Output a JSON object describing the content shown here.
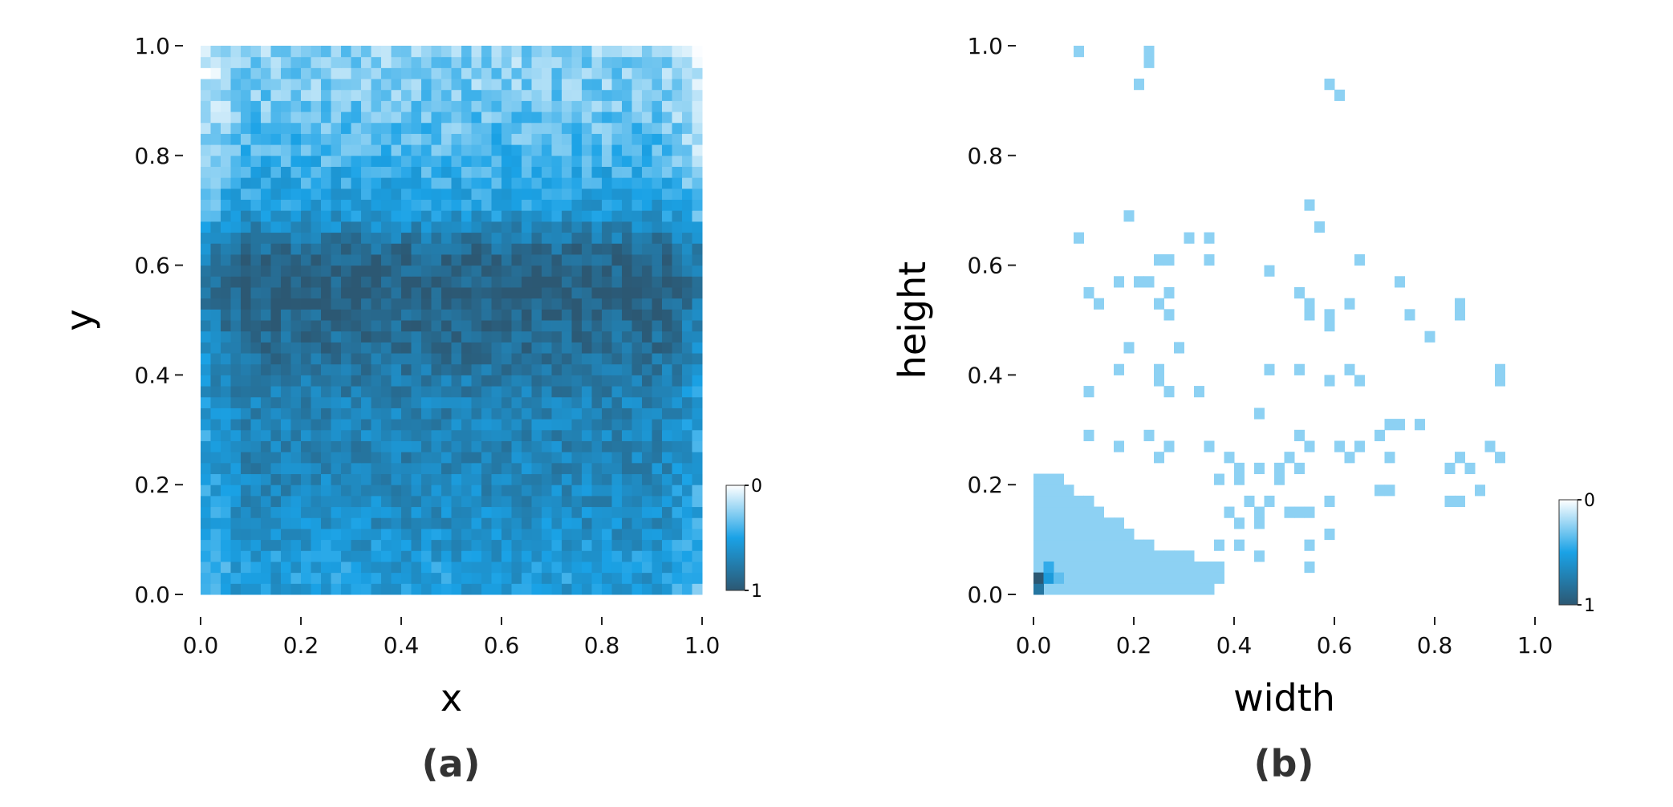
{
  "chart_data": [
    {
      "type": "heatmap",
      "panel": "(a)",
      "xlabel": "x",
      "ylabel": "y",
      "xlim": [
        0.0,
        1.0
      ],
      "ylim": [
        0.0,
        1.0
      ],
      "x_ticks": [
        "0.0",
        "0.2",
        "0.4",
        "0.6",
        "0.8",
        "1.0"
      ],
      "y_ticks": [
        "0.0",
        "0.2",
        "0.4",
        "0.6",
        "0.8",
        "1.0"
      ],
      "bins": [
        50,
        50
      ],
      "colorbar": {
        "min_label": "0",
        "max_label": "1",
        "low_color": "#ffffff",
        "mid_color": "#1aa2e6",
        "high_color": "#2c5873"
      },
      "grid": false,
      "description_of_density": "normalized density of object centers; highest near y 0.45-0.65 across all x, lower toward top (y>0.8) and left/right edges",
      "density_profile_y": [
        {
          "y": 0.05,
          "value": 0.55
        },
        {
          "y": 0.15,
          "value": 0.65
        },
        {
          "y": 0.25,
          "value": 0.7
        },
        {
          "y": 0.35,
          "value": 0.72
        },
        {
          "y": 0.45,
          "value": 0.85
        },
        {
          "y": 0.55,
          "value": 0.95
        },
        {
          "y": 0.62,
          "value": 0.9
        },
        {
          "y": 0.7,
          "value": 0.55
        },
        {
          "y": 0.8,
          "value": 0.4
        },
        {
          "y": 0.9,
          "value": 0.3
        },
        {
          "y": 0.98,
          "value": 0.25
        }
      ]
    },
    {
      "type": "heatmap",
      "panel": "(b)",
      "xlabel": "width",
      "ylabel": "height",
      "xlim": [
        0.0,
        1.0
      ],
      "ylim": [
        0.0,
        1.0
      ],
      "x_ticks": [
        "0.0",
        "0.2",
        "0.4",
        "0.6",
        "0.8",
        "1.0"
      ],
      "y_ticks": [
        "0.0",
        "0.2",
        "0.4",
        "0.6",
        "0.8",
        "1.0"
      ],
      "bins": [
        50,
        50
      ],
      "colorbar": {
        "min_label": "0",
        "max_label": "1",
        "low_color": "#ffffff",
        "mid_color": "#1aa2e6",
        "high_color": "#2c5873"
      },
      "grid": false,
      "peak": {
        "width": 0.01,
        "height": 0.03,
        "value": 1.0
      },
      "sparse_cells": [
        [
          0.09,
          0.99
        ],
        [
          0.23,
          0.98
        ],
        [
          0.23,
          0.96
        ],
        [
          0.21,
          0.93
        ],
        [
          0.59,
          0.93
        ],
        [
          0.61,
          0.91
        ],
        [
          0.55,
          0.71
        ],
        [
          0.19,
          0.69
        ],
        [
          0.57,
          0.67
        ],
        [
          0.09,
          0.65
        ],
        [
          0.31,
          0.65
        ],
        [
          0.35,
          0.65
        ],
        [
          0.25,
          0.61
        ],
        [
          0.27,
          0.61
        ],
        [
          0.35,
          0.61
        ],
        [
          0.65,
          0.61
        ],
        [
          0.47,
          0.59
        ],
        [
          0.17,
          0.57
        ],
        [
          0.21,
          0.57
        ],
        [
          0.23,
          0.57
        ],
        [
          0.73,
          0.57
        ],
        [
          0.11,
          0.55
        ],
        [
          0.27,
          0.55
        ],
        [
          0.53,
          0.55
        ],
        [
          0.13,
          0.53
        ],
        [
          0.25,
          0.53
        ],
        [
          0.55,
          0.53
        ],
        [
          0.63,
          0.53
        ],
        [
          0.85,
          0.53
        ],
        [
          0.27,
          0.51
        ],
        [
          0.55,
          0.51
        ],
        [
          0.59,
          0.51
        ],
        [
          0.75,
          0.51
        ],
        [
          0.85,
          0.51
        ],
        [
          0.59,
          0.49
        ],
        [
          0.79,
          0.47
        ],
        [
          0.19,
          0.45
        ],
        [
          0.29,
          0.45
        ],
        [
          0.17,
          0.41
        ],
        [
          0.25,
          0.41
        ],
        [
          0.47,
          0.41
        ],
        [
          0.53,
          0.41
        ],
        [
          0.63,
          0.41
        ],
        [
          0.93,
          0.41
        ],
        [
          0.25,
          0.39
        ],
        [
          0.59,
          0.39
        ],
        [
          0.65,
          0.39
        ],
        [
          0.93,
          0.39
        ],
        [
          0.11,
          0.37
        ],
        [
          0.27,
          0.37
        ],
        [
          0.33,
          0.37
        ],
        [
          0.45,
          0.33
        ],
        [
          0.71,
          0.31
        ],
        [
          0.73,
          0.31
        ],
        [
          0.77,
          0.31
        ],
        [
          0.11,
          0.29
        ],
        [
          0.23,
          0.29
        ],
        [
          0.53,
          0.29
        ],
        [
          0.69,
          0.29
        ],
        [
          0.17,
          0.27
        ],
        [
          0.27,
          0.27
        ],
        [
          0.35,
          0.27
        ],
        [
          0.55,
          0.27
        ],
        [
          0.61,
          0.27
        ],
        [
          0.65,
          0.27
        ],
        [
          0.91,
          0.27
        ],
        [
          0.25,
          0.25
        ],
        [
          0.39,
          0.25
        ],
        [
          0.51,
          0.25
        ],
        [
          0.63,
          0.25
        ],
        [
          0.71,
          0.25
        ],
        [
          0.85,
          0.25
        ],
        [
          0.93,
          0.25
        ],
        [
          0.41,
          0.23
        ],
        [
          0.45,
          0.23
        ],
        [
          0.49,
          0.23
        ],
        [
          0.53,
          0.23
        ],
        [
          0.83,
          0.23
        ],
        [
          0.87,
          0.23
        ],
        [
          0.37,
          0.21
        ],
        [
          0.41,
          0.21
        ],
        [
          0.49,
          0.21
        ],
        [
          0.69,
          0.19
        ],
        [
          0.71,
          0.19
        ],
        [
          0.89,
          0.19
        ],
        [
          0.43,
          0.17
        ],
        [
          0.47,
          0.17
        ],
        [
          0.59,
          0.17
        ],
        [
          0.83,
          0.17
        ],
        [
          0.85,
          0.17
        ],
        [
          0.39,
          0.15
        ],
        [
          0.45,
          0.15
        ],
        [
          0.51,
          0.15
        ],
        [
          0.53,
          0.15
        ],
        [
          0.55,
          0.15
        ],
        [
          0.41,
          0.13
        ],
        [
          0.45,
          0.13
        ],
        [
          0.59,
          0.11
        ],
        [
          0.37,
          0.09
        ],
        [
          0.41,
          0.09
        ],
        [
          0.55,
          0.09
        ],
        [
          0.45,
          0.07
        ],
        [
          0.37,
          0.05
        ],
        [
          0.55,
          0.05
        ],
        [
          0.37,
          0.03
        ]
      ]
    }
  ],
  "captions": [
    "(a)",
    "(b)"
  ]
}
